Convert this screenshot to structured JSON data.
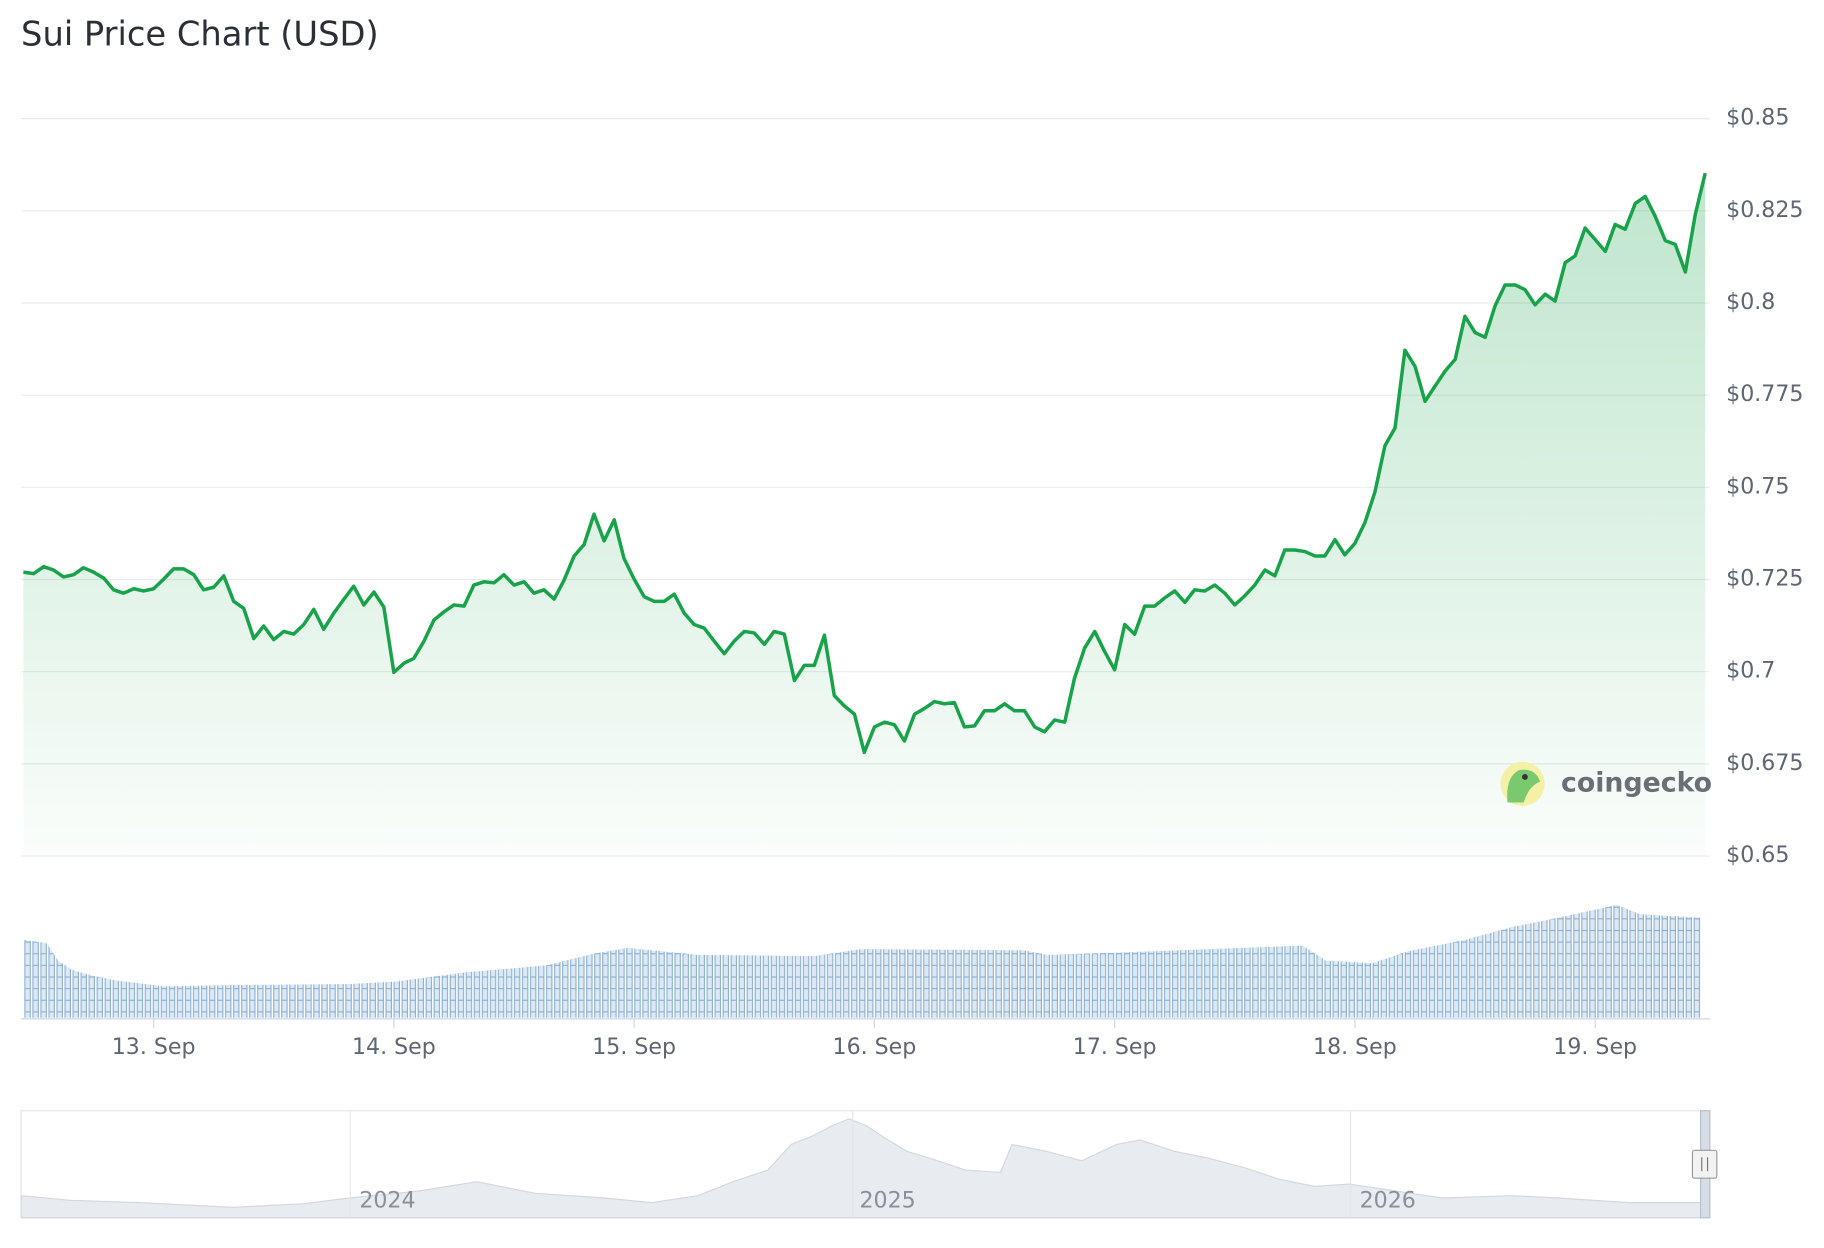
{
  "chart_data": {
    "type": "line",
    "title": "Sui Price Chart (USD)",
    "watermark": "coingecko",
    "navigator": {
      "labels": [
        "2024",
        "2025",
        "2026"
      ]
    },
    "xlim": [
      12.458,
      19.458
    ],
    "xticks": [
      {
        "value": 13,
        "label": "13. Sep"
      },
      {
        "value": 14,
        "label": "14. Sep"
      },
      {
        "value": 15,
        "label": "15. Sep"
      },
      {
        "value": 16,
        "label": "16. Sep"
      },
      {
        "value": 17,
        "label": "17. Sep"
      },
      {
        "value": 18,
        "label": "18. Sep"
      },
      {
        "value": 19,
        "label": "19. Sep"
      }
    ],
    "ylim": [
      0.65,
      0.85
    ],
    "yticks": [
      {
        "value": 0.65,
        "label": "$0.65"
      },
      {
        "value": 0.675,
        "label": "$0.675"
      },
      {
        "value": 0.7,
        "label": "$0.7"
      },
      {
        "value": 0.725,
        "label": "$0.725"
      },
      {
        "value": 0.75,
        "label": "$0.75"
      },
      {
        "value": 0.775,
        "label": "$0.775"
      },
      {
        "value": 0.8,
        "label": "$0.8"
      },
      {
        "value": 0.825,
        "label": "$0.825"
      },
      {
        "value": 0.85,
        "label": "$0.85"
      }
    ],
    "grid": true,
    "x": [
      12.458,
      12.5,
      12.542,
      12.583,
      12.625,
      12.667,
      12.708,
      12.75,
      12.792,
      12.833,
      12.875,
      12.917,
      12.958,
      13,
      13.042,
      13.083,
      13.125,
      13.167,
      13.208,
      13.25,
      13.292,
      13.333,
      13.375,
      13.417,
      13.458,
      13.5,
      13.542,
      13.583,
      13.625,
      13.667,
      13.708,
      13.75,
      13.792,
      13.833,
      13.875,
      13.917,
      13.958,
      14,
      14.042,
      14.083,
      14.125,
      14.167,
      14.208,
      14.25,
      14.292,
      14.333,
      14.375,
      14.417,
      14.458,
      14.5,
      14.542,
      14.583,
      14.625,
      14.667,
      14.708,
      14.75,
      14.792,
      14.833,
      14.875,
      14.917,
      14.958,
      15,
      15.042,
      15.083,
      15.125,
      15.167,
      15.208,
      15.25,
      15.292,
      15.333,
      15.375,
      15.417,
      15.458,
      15.5,
      15.542,
      15.583,
      15.625,
      15.667,
      15.708,
      15.75,
      15.792,
      15.833,
      15.875,
      15.917,
      15.958,
      16,
      16.042,
      16.083,
      16.125,
      16.167,
      16.208,
      16.25,
      16.292,
      16.333,
      16.375,
      16.417,
      16.458,
      16.5,
      16.542,
      16.583,
      16.625,
      16.667,
      16.708,
      16.75,
      16.792,
      16.833,
      16.875,
      16.917,
      16.958,
      17,
      17.042,
      17.083,
      17.125,
      17.167,
      17.208,
      17.25,
      17.292,
      17.333,
      17.375,
      17.417,
      17.458,
      17.5,
      17.542,
      17.583,
      17.625,
      17.667,
      17.708,
      17.75,
      17.792,
      17.833,
      17.875,
      17.917,
      17.958,
      18,
      18.042,
      18.083,
      18.125,
      18.167,
      18.208,
      18.25,
      18.292,
      18.333,
      18.375,
      18.417,
      18.458,
      18.5,
      18.542,
      18.583,
      18.625,
      18.667,
      18.708,
      18.75,
      18.792,
      18.833,
      18.875,
      18.917,
      18.958,
      19,
      19.042,
      19.083,
      19.125,
      19.167,
      19.208,
      19.25,
      19.292,
      19.333,
      19.375,
      19.417,
      19.458
    ],
    "series": [
      {
        "name": "Price",
        "color": "#18a34a",
        "values": [
          0.727,
          0.7266,
          0.7285,
          0.7276,
          0.7257,
          0.7263,
          0.7282,
          0.727,
          0.7254,
          0.7222,
          0.7213,
          0.7225,
          0.7219,
          0.7225,
          0.7251,
          0.7279,
          0.7279,
          0.7263,
          0.7222,
          0.7229,
          0.726,
          0.7191,
          0.7172,
          0.709,
          0.7124,
          0.7087,
          0.7109,
          0.7102,
          0.7128,
          0.7169,
          0.7115,
          0.7159,
          0.7197,
          0.7232,
          0.7181,
          0.7216,
          0.7175,
          0.6998,
          0.7023,
          0.7036,
          0.7083,
          0.714,
          0.7162,
          0.7181,
          0.7178,
          0.7235,
          0.7244,
          0.7241,
          0.7263,
          0.7235,
          0.7244,
          0.7213,
          0.7222,
          0.7197,
          0.7248,
          0.7314,
          0.7345,
          0.7427,
          0.7355,
          0.7412,
          0.7307,
          0.7251,
          0.7203,
          0.7191,
          0.7191,
          0.721,
          0.7159,
          0.7128,
          0.7118,
          0.7083,
          0.7049,
          0.7083,
          0.7109,
          0.7105,
          0.7074,
          0.7109,
          0.7102,
          0.6976,
          0.7017,
          0.7017,
          0.7099,
          0.6935,
          0.6907,
          0.6885,
          0.6781,
          0.685,
          0.6863,
          0.6856,
          0.6812,
          0.6885,
          0.69,
          0.6919,
          0.6913,
          0.6916,
          0.685,
          0.6853,
          0.6894,
          0.6894,
          0.6913,
          0.6894,
          0.6894,
          0.685,
          0.6837,
          0.6869,
          0.6863,
          0.6982,
          0.7064,
          0.7109,
          0.7055,
          0.7005,
          0.7128,
          0.7102,
          0.7178,
          0.7178,
          0.72,
          0.7219,
          0.7188,
          0.7222,
          0.7219,
          0.7235,
          0.7213,
          0.7181,
          0.7206,
          0.7235,
          0.7276,
          0.726,
          0.733,
          0.733,
          0.7326,
          0.7314,
          0.7314,
          0.7358,
          0.7317,
          0.7348,
          0.7405,
          0.7487,
          0.7613,
          0.7661,
          0.7872,
          0.7828,
          0.7733,
          0.7774,
          0.7815,
          0.7847,
          0.7964,
          0.792,
          0.7907,
          0.7992,
          0.8049,
          0.8049,
          0.8036,
          0.7995,
          0.8024,
          0.8005,
          0.8109,
          0.8128,
          0.8203,
          0.8172,
          0.814,
          0.8213,
          0.82,
          0.827,
          0.8289,
          0.8235,
          0.8169,
          0.8159,
          0.8084,
          0.8241,
          0.8352
        ]
      }
    ]
  }
}
